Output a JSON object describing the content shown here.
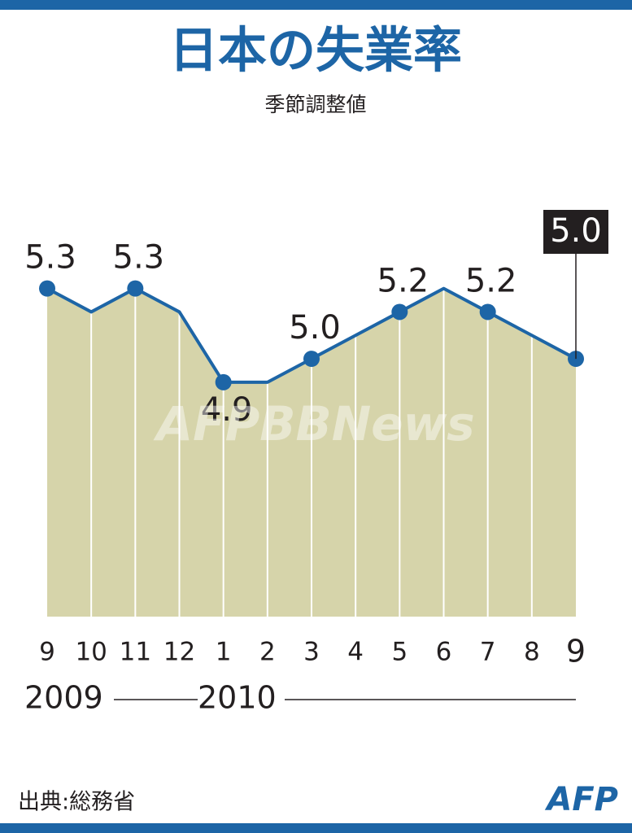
{
  "chart_data": {
    "type": "line",
    "title": "日本の失業率",
    "subtitle": "季節調整値",
    "categories": [
      "9",
      "10",
      "11",
      "12",
      "1",
      "2",
      "3",
      "4",
      "5",
      "6",
      "7",
      "8",
      "9"
    ],
    "years": [
      "2009",
      "2010"
    ],
    "values": [
      5.3,
      5.2,
      5.3,
      5.2,
      4.9,
      4.9,
      5.0,
      5.1,
      5.2,
      5.3,
      5.2,
      5.1,
      5.0
    ],
    "value_labels": [
      "5.3",
      null,
      "5.3",
      null,
      "4.9",
      null,
      "5.0",
      null,
      "5.2",
      null,
      "5.2",
      null,
      "5.0"
    ],
    "color": "#1d65a6",
    "area_color": "#d6d4aa",
    "ylim": [
      3.9,
      5.5
    ],
    "source": "出典:総務省",
    "logo": "AFP",
    "watermark": "AFPBBNews"
  }
}
